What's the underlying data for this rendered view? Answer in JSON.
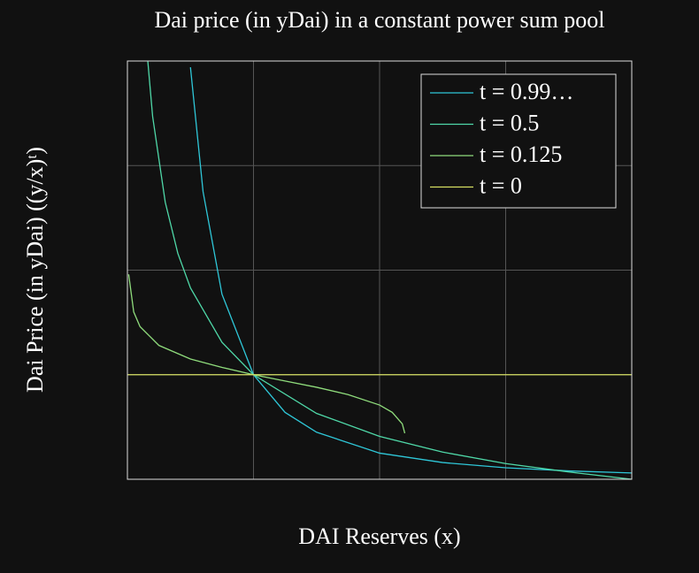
{
  "chart_data": {
    "type": "line",
    "title": "Dai price (in yDai) in a constant power sum pool",
    "x_label": "DAI Reserves (x)",
    "y_label": "Dai Price (in yDai) ((y/x)ᵗ)",
    "xlim": [
      0,
      4
    ],
    "ylim": [
      0,
      4
    ],
    "xticks": [
      0,
      1,
      2,
      3,
      4
    ],
    "yticks": [
      0,
      1,
      2,
      3,
      4
    ],
    "show_tick_labels": false,
    "grid": true,
    "legend": "upper right",
    "series": [
      {
        "name": "t = 0.99…",
        "color": "#2fc7d8",
        "x": [
          0.5,
          0.6,
          0.75,
          1,
          1.25,
          1.5,
          2,
          2.5,
          3,
          3.5,
          4
        ],
        "values": [
          3.94,
          2.75,
          1.77,
          1,
          0.64,
          0.45,
          0.25,
          0.16,
          0.11,
          0.08,
          0.06
        ]
      },
      {
        "name": "t = 0.5",
        "color": "#4fd8a8",
        "x": [
          0.15,
          0.2,
          0.3,
          0.4,
          0.5,
          0.75,
          1,
          1.5,
          2,
          2.5,
          3,
          3.5,
          4
        ],
        "values": [
          4.16,
          3.47,
          2.65,
          2.16,
          1.83,
          1.31,
          1,
          0.63,
          0.41,
          0.26,
          0.15,
          0.07,
          0
        ]
      },
      {
        "name": "t = 0.125",
        "color": "#8fdc7c",
        "x": [
          0.01,
          0.05,
          0.1,
          0.25,
          0.5,
          0.75,
          1,
          1.25,
          1.5,
          1.75,
          2,
          2.1,
          2.18,
          2.2
        ],
        "values": [
          1.96,
          1.6,
          1.46,
          1.28,
          1.15,
          1.07,
          1,
          0.94,
          0.88,
          0.81,
          0.71,
          0.64,
          0.53,
          0.44
        ]
      },
      {
        "name": "t = 0",
        "color": "#d6df62",
        "x": [
          0,
          4
        ],
        "values": [
          1,
          1
        ]
      }
    ]
  }
}
